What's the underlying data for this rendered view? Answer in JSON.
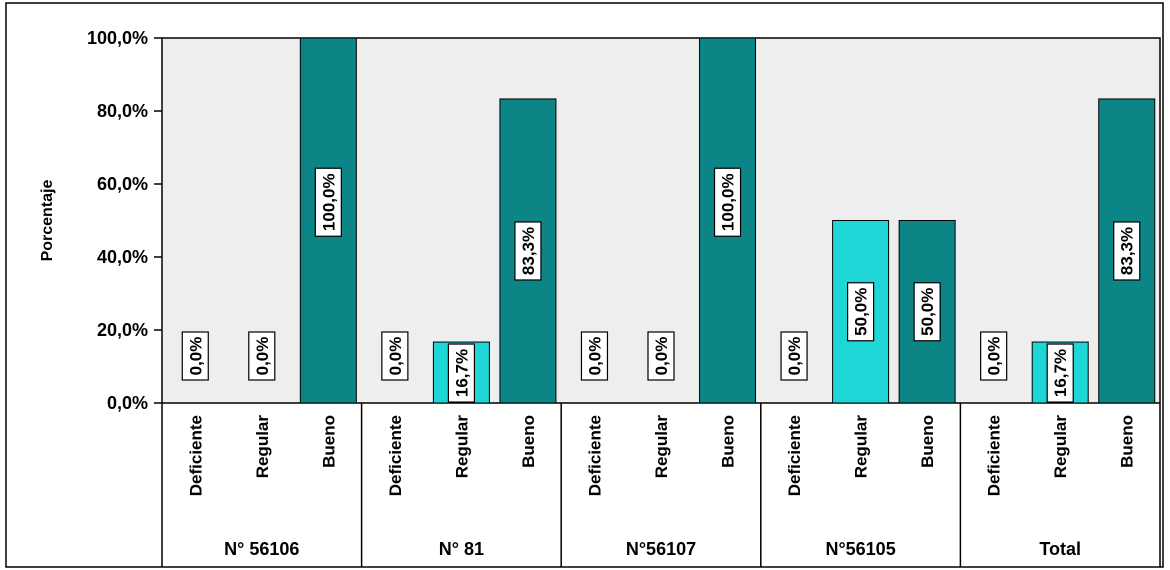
{
  "chart_data": {
    "type": "bar",
    "ylabel": "Porcentaje",
    "ylim": [
      0,
      100
    ],
    "y_ticks": [
      "0,0%",
      "20,0%",
      "40,0%",
      "60,0%",
      "80,0%",
      "100,0%"
    ],
    "grid": false,
    "categories": [
      "Deficiente",
      "Regular",
      "Bueno"
    ],
    "groups": [
      {
        "name": "N° 56106",
        "values": [
          0,
          0,
          100
        ],
        "labels": [
          "0,0%",
          "0,0%",
          "100,0%"
        ]
      },
      {
        "name": "N° 81",
        "values": [
          0,
          16.7,
          83.3
        ],
        "labels": [
          "0,0%",
          "16,7%",
          "83,3%"
        ]
      },
      {
        "name": "N°56107",
        "values": [
          0,
          0,
          100
        ],
        "labels": [
          "0,0%",
          "0,0%",
          "100,0%"
        ]
      },
      {
        "name": "N°56105",
        "values": [
          0,
          50,
          50
        ],
        "labels": [
          "0,0%",
          "50,0%",
          "50,0%"
        ]
      },
      {
        "name": "Total",
        "values": [
          0,
          16.7,
          83.3
        ],
        "labels": [
          "0,0%",
          "16,7%",
          "83,3%"
        ]
      }
    ],
    "colors": {
      "Deficiente": "#0a4f4f",
      "Regular": "#1fd6d6",
      "Bueno": "#0b8585",
      "plot_background": "#eeeeee"
    }
  }
}
